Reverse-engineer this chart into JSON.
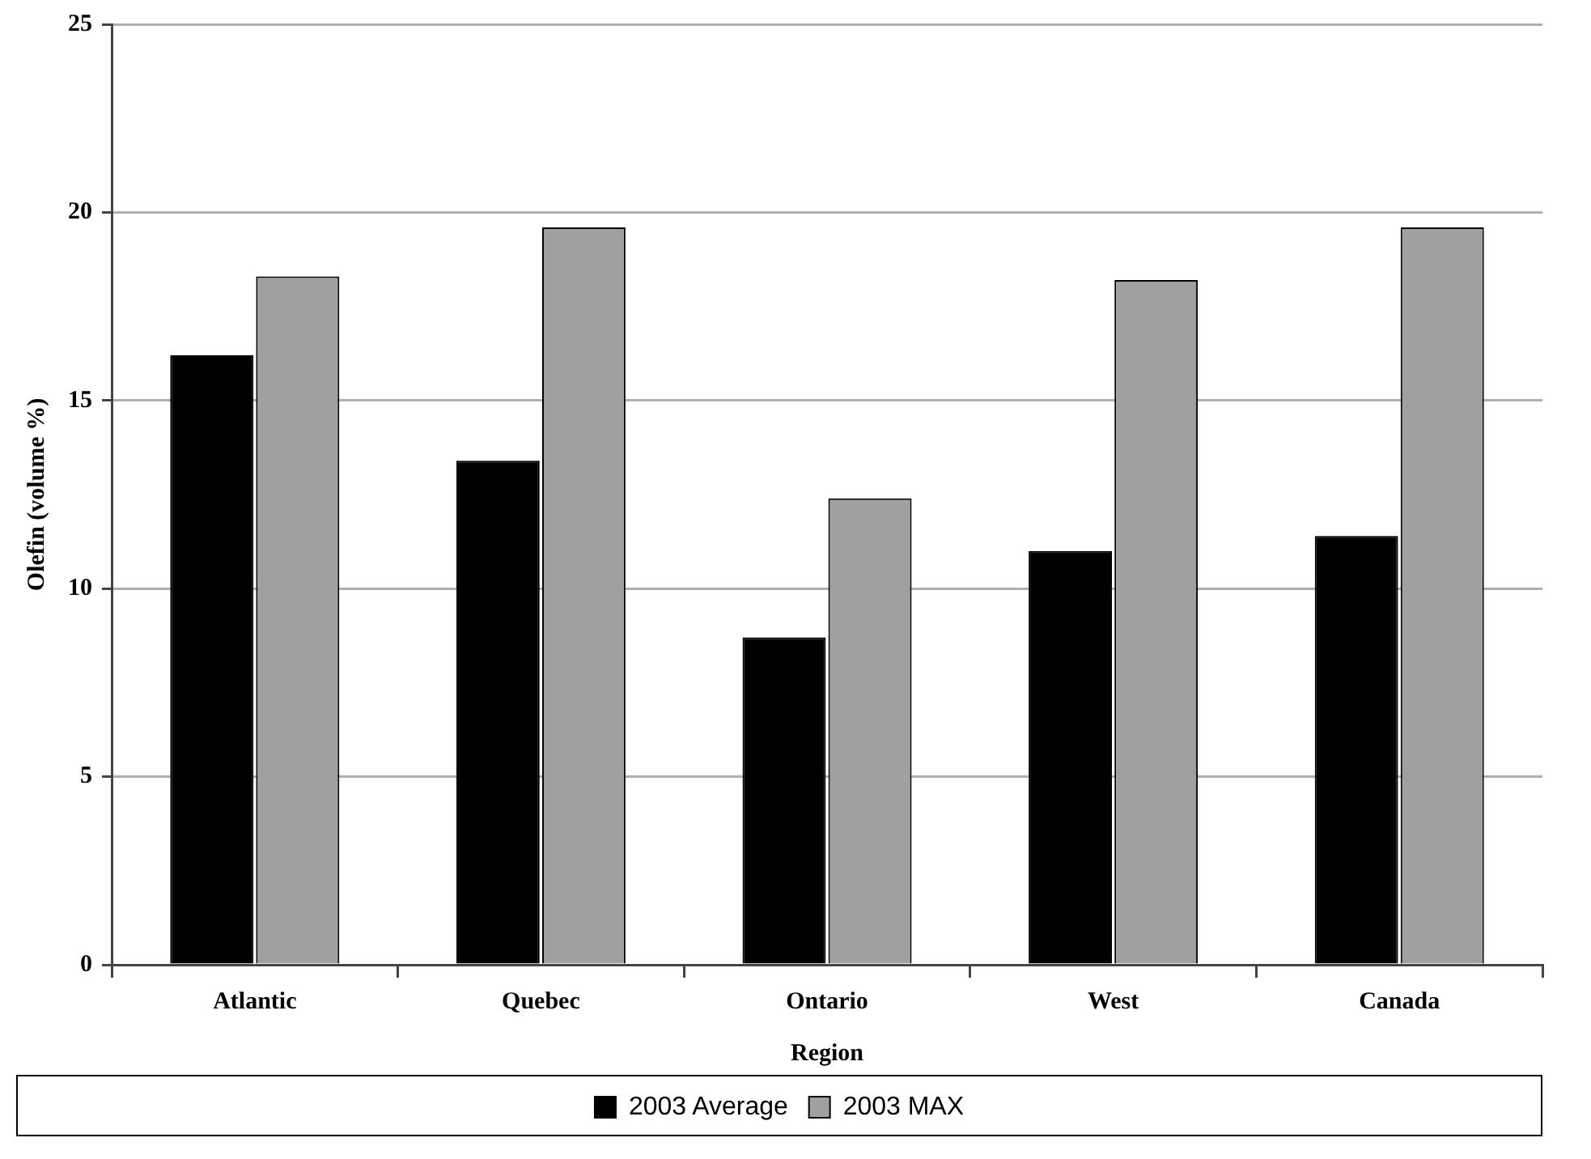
{
  "chart_data": {
    "type": "bar",
    "xlabel": "Region",
    "ylabel": "Olefin (volume %)",
    "categories": [
      "Atlantic",
      "Quebec",
      "Ontario",
      "West",
      "Canada"
    ],
    "series": [
      {
        "name": "2003 Average",
        "color": "#000000",
        "values": [
          16.2,
          13.4,
          8.7,
          11.0,
          11.4
        ]
      },
      {
        "name": "2003 MAX",
        "color": "#a0a0a0",
        "values": [
          18.3,
          19.6,
          12.4,
          18.2,
          19.6
        ]
      }
    ],
    "ylim": [
      0,
      25
    ],
    "yticks": [
      0,
      5,
      10,
      15,
      20,
      25
    ],
    "grid": "y",
    "legend": "bottom"
  }
}
